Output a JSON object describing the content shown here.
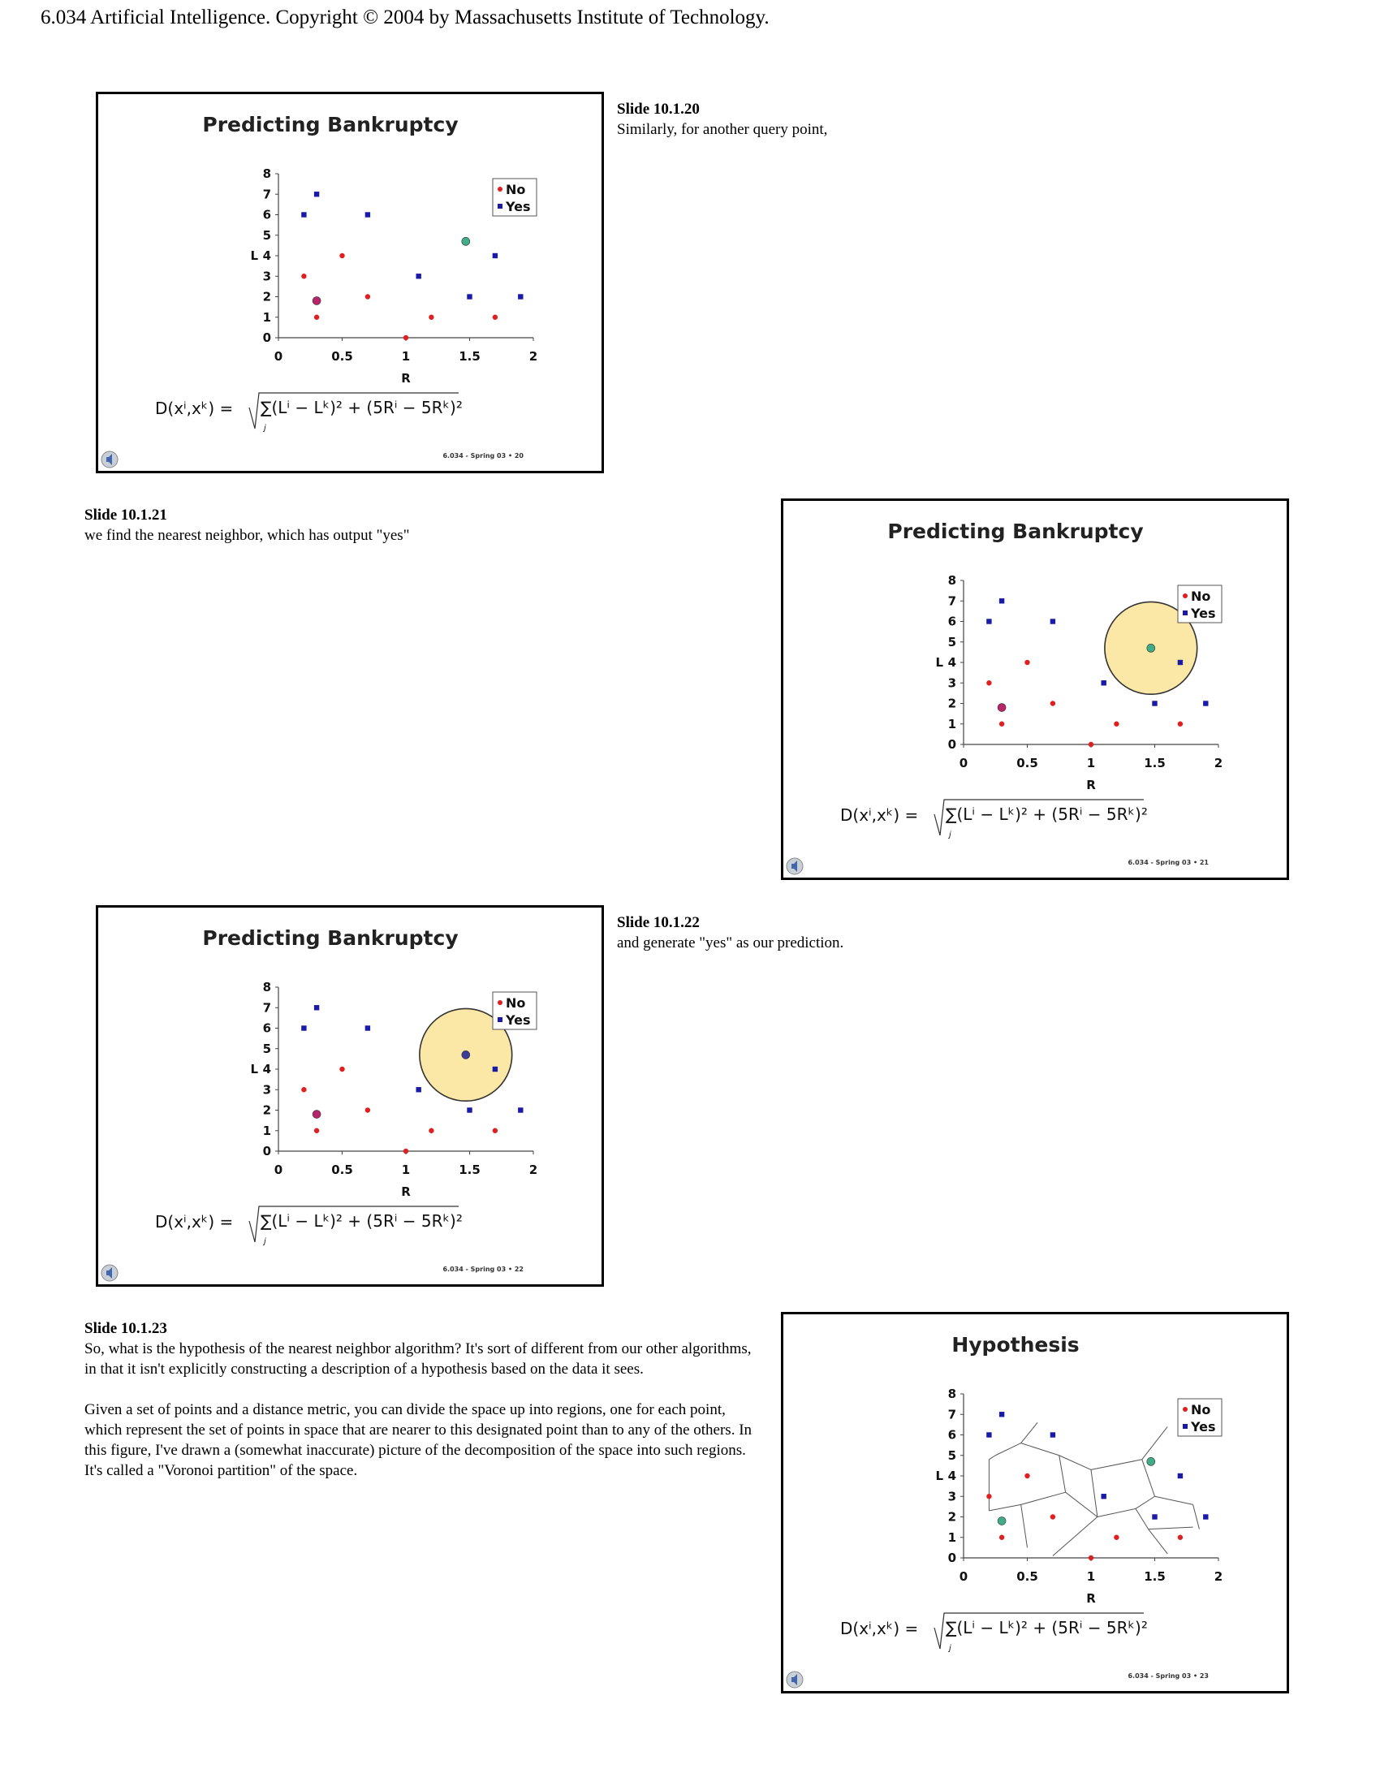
{
  "header": "6.034 Artificial Intelligence. Copyright © 2004 by Massachusetts Institute of Technology.",
  "colors": {
    "no": "#e02020",
    "yes": "#1a1aa8",
    "query": "#3fae88",
    "circle_fill": "#fbe7a6",
    "neighbor_query": "#3b3b9a"
  },
  "slides": [
    {
      "title": "Predicting Bankruptcy",
      "footer": "6.034 - Spring 03  •  20",
      "note_title": "Slide 10.1.20",
      "note_text": "Similarly, for another query point,",
      "chart_data": {
        "type": "scatter",
        "xlabel": "R",
        "ylabel": "L",
        "xlim": [
          0,
          2
        ],
        "ylim": [
          0,
          8
        ],
        "xticks": [
          "0",
          "0.5",
          "1",
          "1.5",
          "2"
        ],
        "yticks": [
          "0",
          "1",
          "2",
          "3",
          "4",
          "5",
          "6",
          "7",
          "8"
        ],
        "legend": [
          "No",
          "Yes"
        ],
        "legend_position": "top-right",
        "series": [
          {
            "name": "No",
            "marker": "circle",
            "points": [
              [
                0.2,
                3
              ],
              [
                0.3,
                1
              ],
              [
                0.5,
                4
              ],
              [
                0.7,
                2
              ],
              [
                1.0,
                0
              ],
              [
                1.2,
                1
              ],
              [
                1.7,
                1
              ]
            ]
          },
          {
            "name": "Yes",
            "marker": "square",
            "points": [
              [
                0.2,
                6
              ],
              [
                0.3,
                7
              ],
              [
                0.7,
                6
              ],
              [
                1.1,
                3
              ],
              [
                1.5,
                2
              ],
              [
                1.7,
                4
              ],
              [
                1.9,
                2
              ]
            ]
          }
        ],
        "highlight": [
          {
            "x": 0.3,
            "y": 1.8,
            "color": "#b8256a",
            "kind": "old-query"
          }
        ],
        "query": {
          "x": 1.47,
          "y": 4.7,
          "color": "#3fae88"
        },
        "formula": {
          "lhs": "D(xⁱ,xᵏ) =",
          "rhs": "∑(Lⁱ − Lᵏ)² + (5Rⁱ − 5Rᵏ)²",
          "sub": "j"
        }
      }
    },
    {
      "title": "Predicting Bankruptcy",
      "footer": "6.034 - Spring 03  •  21",
      "note_title": "Slide 10.1.21",
      "note_text": "we find the nearest neighbor, which has output \"yes\"",
      "chart_data": {
        "type": "scatter",
        "xlabel": "R",
        "ylabel": "L",
        "xlim": [
          0,
          2
        ],
        "ylim": [
          0,
          8
        ],
        "xticks": [
          "0",
          "0.5",
          "1",
          "1.5",
          "2"
        ],
        "yticks": [
          "0",
          "1",
          "2",
          "3",
          "4",
          "5",
          "6",
          "7",
          "8"
        ],
        "legend": [
          "No",
          "Yes"
        ],
        "legend_position": "top-right",
        "series": [
          {
            "name": "No",
            "marker": "circle",
            "points": [
              [
                0.2,
                3
              ],
              [
                0.3,
                1
              ],
              [
                0.5,
                4
              ],
              [
                0.7,
                2
              ],
              [
                1.0,
                0
              ],
              [
                1.2,
                1
              ],
              [
                1.7,
                1
              ]
            ]
          },
          {
            "name": "Yes",
            "marker": "square",
            "points": [
              [
                0.2,
                6
              ],
              [
                0.3,
                7
              ],
              [
                0.7,
                6
              ],
              [
                1.1,
                3
              ],
              [
                1.5,
                2
              ],
              [
                1.7,
                4
              ],
              [
                1.9,
                2
              ]
            ]
          }
        ],
        "highlight": [
          {
            "x": 0.3,
            "y": 1.8,
            "color": "#b8256a",
            "kind": "old-query"
          }
        ],
        "query": {
          "x": 1.47,
          "y": 4.7,
          "color": "#3fae88"
        },
        "neighbor_circle": {
          "x": 1.47,
          "y": 4.7,
          "r": 0.25
        },
        "formula": {
          "lhs": "D(xⁱ,xᵏ) =",
          "rhs": "∑(Lⁱ − Lᵏ)² + (5Rⁱ − 5Rᵏ)²",
          "sub": "j"
        }
      }
    },
    {
      "title": "Predicting Bankruptcy",
      "footer": "6.034 - Spring 03  •  22",
      "note_title": "Slide 10.1.22",
      "note_text": "and generate \"yes\" as our prediction.",
      "chart_data": {
        "type": "scatter",
        "xlabel": "R",
        "ylabel": "L",
        "xlim": [
          0,
          2
        ],
        "ylim": [
          0,
          8
        ],
        "xticks": [
          "0",
          "0.5",
          "1",
          "1.5",
          "2"
        ],
        "yticks": [
          "0",
          "1",
          "2",
          "3",
          "4",
          "5",
          "6",
          "7",
          "8"
        ],
        "legend": [
          "No",
          "Yes"
        ],
        "legend_position": "top-right",
        "series": [
          {
            "name": "No",
            "marker": "circle",
            "points": [
              [
                0.2,
                3
              ],
              [
                0.3,
                1
              ],
              [
                0.5,
                4
              ],
              [
                0.7,
                2
              ],
              [
                1.0,
                0
              ],
              [
                1.2,
                1
              ],
              [
                1.7,
                1
              ]
            ]
          },
          {
            "name": "Yes",
            "marker": "square",
            "points": [
              [
                0.2,
                6
              ],
              [
                0.3,
                7
              ],
              [
                0.7,
                6
              ],
              [
                1.1,
                3
              ],
              [
                1.5,
                2
              ],
              [
                1.7,
                4
              ],
              [
                1.9,
                2
              ]
            ]
          }
        ],
        "highlight": [
          {
            "x": 0.3,
            "y": 1.8,
            "color": "#b8256a",
            "kind": "old-query"
          }
        ],
        "query": {
          "x": 1.47,
          "y": 4.7,
          "color": "#3b3b9a"
        },
        "neighbor_circle": {
          "x": 1.47,
          "y": 4.7,
          "r": 0.25
        },
        "formula": {
          "lhs": "D(xⁱ,xᵏ) =",
          "rhs": "∑(Lⁱ − Lᵏ)² + (5Rⁱ − 5Rᵏ)²",
          "sub": "j"
        }
      }
    },
    {
      "title": "Hypothesis",
      "footer": "6.034 - Spring 03  •  23",
      "note_title": "Slide 10.1.23",
      "note_paragraphs": [
        "So, what is the hypothesis of the nearest neighbor algorithm? It's sort of different from our other algorithms, in that it isn't explicitly constructing a description of a hypothesis based on the data it sees.",
        "Given a set of points and a distance metric, you can divide the space up into regions, one for each point, which represent the set of points in space that are nearer to this designated point than to any of the others. In this figure, I've drawn a (somewhat inaccurate) picture of the decomposition of the space into such regions. It's called a \"Voronoi partition\" of the space."
      ],
      "chart_data": {
        "type": "scatter",
        "xlabel": "R",
        "ylabel": "L",
        "xlim": [
          0,
          2
        ],
        "ylim": [
          0,
          8
        ],
        "xticks": [
          "0",
          "0.5",
          "1",
          "1.5",
          "2"
        ],
        "yticks": [
          "0",
          "1",
          "2",
          "3",
          "4",
          "5",
          "6",
          "7",
          "8"
        ],
        "legend": [
          "No",
          "Yes"
        ],
        "legend_position": "top-right",
        "series": [
          {
            "name": "No",
            "marker": "circle",
            "points": [
              [
                0.2,
                3
              ],
              [
                0.3,
                1
              ],
              [
                0.5,
                4
              ],
              [
                0.7,
                2
              ],
              [
                1.0,
                0
              ],
              [
                1.2,
                1
              ],
              [
                1.7,
                1
              ]
            ]
          },
          {
            "name": "Yes",
            "marker": "square",
            "points": [
              [
                0.2,
                6
              ],
              [
                0.3,
                7
              ],
              [
                0.7,
                6
              ],
              [
                1.1,
                3
              ],
              [
                1.5,
                2
              ],
              [
                1.7,
                4
              ],
              [
                1.9,
                2
              ]
            ]
          }
        ],
        "highlight": [
          {
            "x": 0.3,
            "y": 1.8,
            "color": "#3fae88",
            "kind": "query"
          }
        ],
        "query": {
          "x": 1.47,
          "y": 4.7,
          "color": "#3fae88"
        },
        "voronoi_edges": [
          [
            [
              0.25,
              5.0
            ],
            [
              0.45,
              5.6
            ]
          ],
          [
            [
              0.45,
              5.6
            ],
            [
              0.58,
              6.6
            ]
          ],
          [
            [
              0.45,
              5.6
            ],
            [
              0.75,
              5.0
            ]
          ],
          [
            [
              0.75,
              5.0
            ],
            [
              0.8,
              3.2
            ]
          ],
          [
            [
              0.75,
              5.0
            ],
            [
              1.0,
              4.3
            ]
          ],
          [
            [
              1.0,
              4.3
            ],
            [
              1.4,
              4.8
            ]
          ],
          [
            [
              1.4,
              4.8
            ],
            [
              1.6,
              6.4
            ]
          ],
          [
            [
              1.4,
              4.8
            ],
            [
              1.5,
              3.0
            ]
          ],
          [
            [
              1.0,
              4.3
            ],
            [
              1.05,
              2.0
            ]
          ],
          [
            [
              0.8,
              3.2
            ],
            [
              1.05,
              2.0
            ]
          ],
          [
            [
              0.8,
              3.2
            ],
            [
              0.45,
              2.6
            ]
          ],
          [
            [
              0.45,
              2.6
            ],
            [
              0.2,
              2.3
            ]
          ],
          [
            [
              0.45,
              2.6
            ],
            [
              0.5,
              0.5
            ]
          ],
          [
            [
              1.05,
              2.0
            ],
            [
              1.35,
              2.4
            ]
          ],
          [
            [
              1.35,
              2.4
            ],
            [
              1.5,
              3.0
            ]
          ],
          [
            [
              1.5,
              3.0
            ],
            [
              1.8,
              2.6
            ]
          ],
          [
            [
              1.35,
              2.4
            ],
            [
              1.45,
              1.4
            ]
          ],
          [
            [
              1.45,
              1.4
            ],
            [
              1.6,
              0.2
            ]
          ],
          [
            [
              1.45,
              1.4
            ],
            [
              1.8,
              1.5
            ]
          ],
          [
            [
              1.8,
              2.6
            ],
            [
              1.85,
              1.4
            ]
          ],
          [
            [
              1.05,
              2.0
            ],
            [
              0.7,
              0.1
            ]
          ],
          [
            [
              0.2,
              2.3
            ],
            [
              0.2,
              4.8
            ]
          ],
          [
            [
              0.2,
              4.8
            ],
            [
              0.25,
              5.0
            ]
          ]
        ],
        "formula": {
          "lhs": "D(xⁱ,xᵏ) =",
          "rhs": "∑(Lⁱ − Lᵏ)² + (5Rⁱ − 5Rᵏ)²",
          "sub": "j"
        }
      }
    }
  ]
}
